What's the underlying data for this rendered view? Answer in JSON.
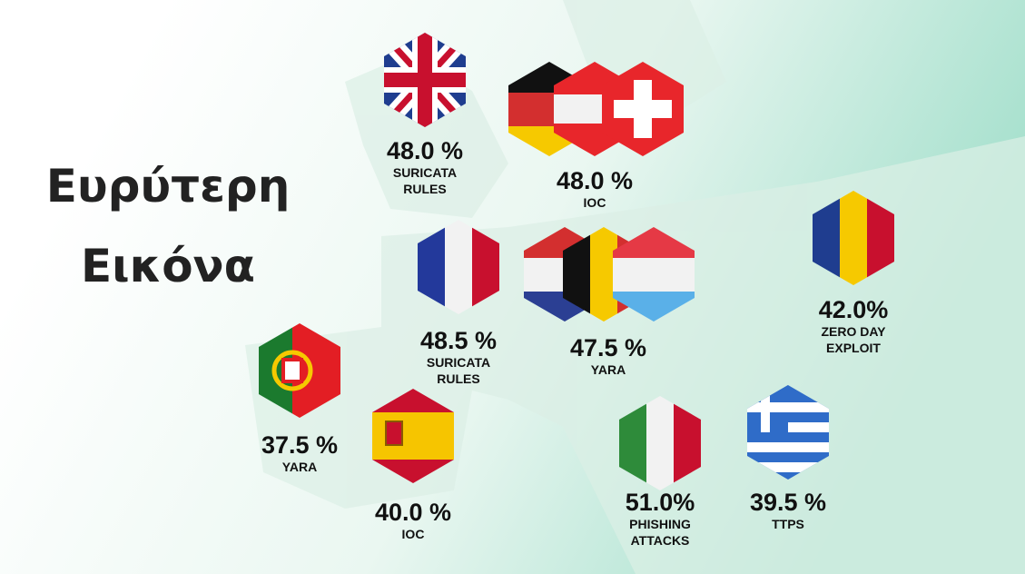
{
  "title": [
    "Ευρύτερη",
    "Εικόνα"
  ],
  "stats": [
    {
      "value": "48.0 %",
      "label": [
        "SURICATA",
        "RULES"
      ]
    },
    {
      "value": "48.0 %",
      "label": [
        "IOC"
      ]
    },
    {
      "value": "42.0%",
      "label": [
        "ZERO DAY",
        "EXPLOIT"
      ]
    },
    {
      "value": "48.5 %",
      "label": [
        "SURICATA",
        "RULES"
      ]
    },
    {
      "value": "47.5 %",
      "label": [
        "YARA"
      ]
    },
    {
      "value": "37.5 %",
      "label": [
        "YARA"
      ]
    },
    {
      "value": "40.0 %",
      "label": [
        "IOC"
      ]
    },
    {
      "value": "51.0%",
      "label": [
        "PHISHING",
        "ATTACKS"
      ]
    },
    {
      "value": "39.5 %",
      "label": [
        "TTPS"
      ]
    }
  ]
}
